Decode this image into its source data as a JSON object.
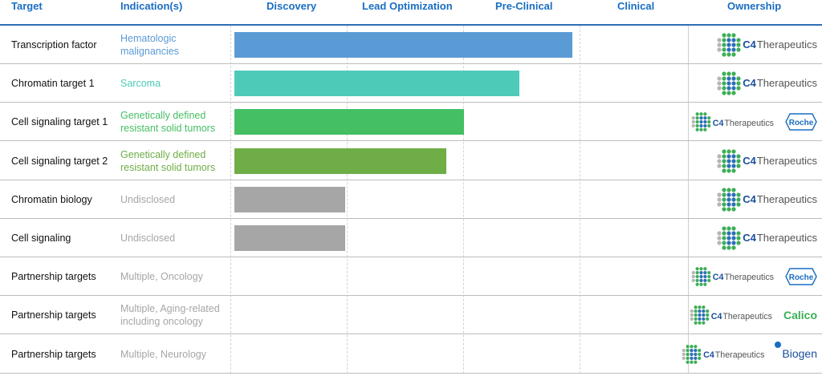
{
  "headers": {
    "target": "Target",
    "indication": "Indication(s)",
    "discovery": "Discovery",
    "lead_opt": "Lead Optimization",
    "preclinical": "Pre-Clinical",
    "clinical": "Clinical",
    "ownership": "Ownership"
  },
  "brand": {
    "c4_prefix": "C4",
    "c4_suffix": "Therapeutics",
    "roche": "Roche",
    "calico": "Calico",
    "biogen": "Biogen"
  },
  "colors": {
    "header_blue": "#1a6ec2",
    "bar_blue": "#5b9bd5",
    "bar_teal": "#4ecbb8",
    "bar_green": "#45bf63",
    "bar_olive": "#6fad46",
    "bar_gray": "#a6a6a6"
  },
  "chart_data": {
    "type": "bar",
    "orientation": "horizontal",
    "stage_axis": [
      "Discovery",
      "Lead Optimization",
      "Pre-Clinical",
      "Clinical"
    ],
    "rows": [
      {
        "target": "Transcription factor",
        "indication": "Hematologic malignancies",
        "progress_stages": 2.9,
        "color": "#5b9bd5",
        "ind_color": "#5b9bd5",
        "owners": [
          "C4 Therapeutics"
        ]
      },
      {
        "target": "Chromatin target 1",
        "indication": "Sarcoma",
        "progress_stages": 2.45,
        "color": "#4ecbb8",
        "ind_color": "#4ecbb8",
        "owners": [
          "C4 Therapeutics"
        ]
      },
      {
        "target": "Cell signaling target 1",
        "indication": "Genetically defined resistant solid tumors",
        "progress_stages": 1.97,
        "color": "#45bf63",
        "ind_color": "#45bf63",
        "owners": [
          "C4 Therapeutics",
          "Roche"
        ]
      },
      {
        "target": "Cell signaling target 2",
        "indication": "Genetically defined resistant solid tumors",
        "progress_stages": 1.82,
        "color": "#6fad46",
        "ind_color": "#6fad46",
        "owners": [
          "C4 Therapeutics"
        ]
      },
      {
        "target": "Chromatin biology",
        "indication": "Undisclosed",
        "progress_stages": 0.95,
        "color": "#a6a6a6",
        "ind_color": "#a6a6a6",
        "owners": [
          "C4 Therapeutics"
        ]
      },
      {
        "target": "Cell signaling",
        "indication": "Undisclosed",
        "progress_stages": 0.95,
        "color": "#a6a6a6",
        "ind_color": "#a6a6a6",
        "owners": [
          "C4 Therapeutics"
        ]
      },
      {
        "target": "Partnership targets",
        "indication": "Multiple, Oncology",
        "progress_stages": 0,
        "color": "#a6a6a6",
        "ind_color": "#a6a6a6",
        "owners": [
          "C4 Therapeutics",
          "Roche"
        ]
      },
      {
        "target": "Partnership targets",
        "indication": "Multiple, Aging-related including oncology",
        "progress_stages": 0,
        "color": "#a6a6a6",
        "ind_color": "#a6a6a6",
        "owners": [
          "C4 Therapeutics",
          "Calico"
        ]
      },
      {
        "target": "Partnership targets",
        "indication": "Multiple, Neurology",
        "progress_stages": 0,
        "color": "#a6a6a6",
        "ind_color": "#a6a6a6",
        "owners": [
          "C4 Therapeutics",
          "Biogen"
        ]
      }
    ]
  }
}
